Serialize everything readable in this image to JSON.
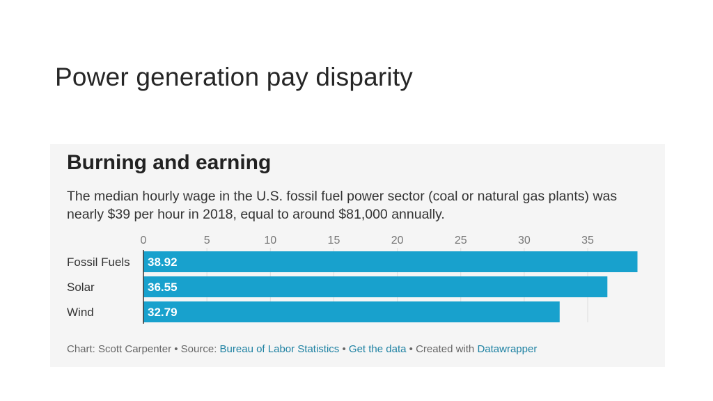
{
  "slide": {
    "title": "Power generation pay disparity"
  },
  "footer": {
    "chart_by": "Chart: Scott Carpenter",
    "sep1": " • ",
    "source_prefix": "Source: ",
    "source": "Bureau of Labor Statistics",
    "sep2": " • ",
    "get_data": "Get the data",
    "sep3": " • ",
    "created_with": "Created with ",
    "datawrapper": "Datawrapper"
  },
  "chart_data": {
    "type": "bar",
    "orientation": "horizontal",
    "title": "Burning and earning",
    "subtitle": "The median hourly wage in the U.S. fossil fuel power sector (coal or natural gas plants) was nearly $39 per hour in 2018, equal to around $81,000 annually.",
    "categories": [
      "Fossil Fuels",
      "Solar",
      "Wind"
    ],
    "values": [
      38.92,
      36.55,
      32.79
    ],
    "value_labels": [
      "38.92",
      "36.55",
      "32.79"
    ],
    "x_ticks": [
      0,
      5,
      10,
      15,
      20,
      25,
      30,
      35
    ],
    "xlim": [
      0,
      39
    ],
    "xlabel": "",
    "ylabel": "",
    "grid": true,
    "bar_color": "#18a1cd",
    "label_color": "#ffffff"
  }
}
